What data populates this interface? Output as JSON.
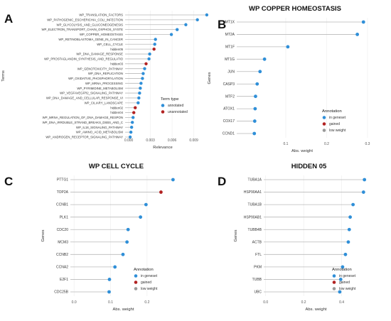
{
  "figure": {
    "panel_letters": [
      "A",
      "B",
      "C",
      "D"
    ],
    "legend_items": {
      "annotated": "annotated",
      "unannotated": "unannotated",
      "in_geneset": "in geneset",
      "gained": "gained",
      "low_weight": "low weight"
    },
    "colors": {
      "blue": "#2f8fd8",
      "red": "#b22222",
      "grey": "#999999",
      "stem": "#b9b9b9"
    }
  },
  "chart_data": [
    {
      "type": "scatter",
      "panel": "A",
      "title": "",
      "xlabel": "Relevance",
      "ylabel": "Terms",
      "xlim": [
        -0.0005,
        0.0115
      ],
      "xticks": [
        0.0,
        0.003,
        0.006,
        0.009
      ],
      "xtick_labels": [
        "0.000",
        "0.003",
        "0.006",
        "0.009"
      ],
      "legend_title": "Term type",
      "categories": [
        "WP_TRANSLATION_FACTORS",
        "WP_PATHOGENIC_ESCHERICHIA_COLI_INFECTION",
        "WP_GLYCOLYSIS_AND_GLUCONEOGENESIS",
        "WP_ELECTRON_TRANSPORT_CHAIN_OXPHOS_SYSTE",
        "WP_COPPER_HOMEOSTASIS",
        "WP_RETINOBLASTOMA_GENE_IN_CANCER",
        "WP_CELL_CYCLE",
        "hidden05",
        "WP_DNA_DAMAGE_RESPONSE",
        "WP_PROSTAGLANDIN_SYNTHESIS_AND_REGULATIO",
        "hidden03",
        "WP_GENOTOXICITY_PATHWAY",
        "WP_DNA_REPLICATION",
        "WP_OXIDATIVE_PHOSPHORYLATION",
        "WP_MRNA_PROCESSING",
        "WP_PYRIMIDINE_METABOLISM",
        "WP_VEGFAVEGFR2_SIGNALING_PATHWAY",
        "WP_DNA_DAMAGE_AND_CELLULAR_RESPONSE_VI",
        "WP_CILIARY_LANDSCAPE",
        "hidden02",
        "hidden04",
        "WP_MRNA_REGULATION_OF_DNA_DAMAGE_RESPON",
        "WP_DNA_IRRDUBLE_STRAND_BREAKS_DSBS_AND_C",
        "WP_IL18_SIGNALING_PATHWAY",
        "WP_AMINO_ACID_METABOLISM",
        "WP_ANDROGEN_RECEPTOR_SIGNALING_PATHWAY"
      ],
      "values": [
        0.0108,
        0.0095,
        0.0079,
        0.0067,
        0.0059,
        0.0037,
        0.0036,
        0.0035,
        0.0029,
        0.0028,
        0.0024,
        0.0022,
        0.002,
        0.0019,
        0.0017,
        0.0016,
        0.0015,
        0.0014,
        0.0013,
        0.0009,
        0.0007,
        0.0006,
        0.0005,
        0.0004,
        0.0003,
        0.0002
      ],
      "groups": [
        "annotated",
        "annotated",
        "annotated",
        "annotated",
        "annotated",
        "annotated",
        "annotated",
        "unannotated",
        "annotated",
        "annotated",
        "unannotated",
        "annotated",
        "annotated",
        "annotated",
        "annotated",
        "annotated",
        "annotated",
        "annotated",
        "annotated",
        "unannotated",
        "unannotated",
        "annotated",
        "annotated",
        "annotated",
        "annotated",
        "annotated"
      ]
    },
    {
      "type": "scatter",
      "panel": "B",
      "title": "WP COPPER HOMEOSTASIS",
      "xlabel": "Abs. weight",
      "ylabel": "Genes",
      "xlim": [
        -0.02,
        0.3
      ],
      "xticks": [
        0.1,
        0.2,
        0.3
      ],
      "xtick_labels": [
        "0.1",
        "0.2",
        "0.3"
      ],
      "legend_title": "Annotation",
      "categories": [
        "MT1X",
        "MT2A",
        "MT1F",
        "MT1G",
        "JUN",
        "CASP3",
        "MTF2",
        "ATOX1",
        "COX17",
        "CCND1"
      ],
      "values": [
        0.29,
        0.275,
        0.105,
        0.048,
        0.037,
        0.03,
        0.026,
        0.025,
        0.024,
        0.023
      ],
      "groups": [
        "in geneset",
        "in geneset",
        "in geneset",
        "in geneset",
        "in geneset",
        "in geneset",
        "in geneset",
        "in geneset",
        "in geneset",
        "in geneset"
      ]
    },
    {
      "type": "scatter",
      "panel": "C",
      "title": "WP CELL CYCLE",
      "xlabel": "Abs. weight",
      "ylabel": "Genes",
      "xlim": [
        -0.01,
        0.28
      ],
      "xticks": [
        0.0,
        0.1,
        0.2
      ],
      "xtick_labels": [
        "0.0",
        "0.1",
        "0.2"
      ],
      "legend_title": "Annotation",
      "categories": [
        "PTTG1",
        "TOP2A",
        "CCNB1",
        "PLK1",
        "CDC20",
        "MCM3",
        "CCNB2",
        "CCNA2",
        "E2F1",
        "CDC25B"
      ],
      "values": [
        0.271,
        0.238,
        0.197,
        0.182,
        0.148,
        0.145,
        0.134,
        0.112,
        0.097,
        0.096
      ],
      "groups": [
        "in geneset",
        "gained",
        "in geneset",
        "in geneset",
        "in geneset",
        "in geneset",
        "in geneset",
        "in geneset",
        "in geneset",
        "in geneset"
      ]
    },
    {
      "type": "scatter",
      "panel": "D",
      "title": "HIDDEN 05",
      "xlabel": "Abs. weight",
      "ylabel": "Genes",
      "xlim": [
        -0.01,
        0.54
      ],
      "xticks": [
        0.0,
        0.2,
        0.4
      ],
      "xtick_labels": [
        "0.0",
        "0.2",
        "0.4"
      ],
      "legend_title": "Annotation",
      "categories": [
        "TUBA1A",
        "HSP90AA1",
        "TUBA1B",
        "HSP90AB1",
        "TUBB4B",
        "ACTB",
        "FTL",
        "PKM",
        "TUBB",
        "UBC"
      ],
      "values": [
        0.52,
        0.515,
        0.46,
        0.445,
        0.44,
        0.435,
        0.42,
        0.405,
        0.395,
        0.39
      ],
      "groups": [
        "in geneset",
        "in geneset",
        "in geneset",
        "in geneset",
        "in geneset",
        "in geneset",
        "in geneset",
        "in geneset",
        "in geneset",
        "in geneset"
      ]
    }
  ]
}
